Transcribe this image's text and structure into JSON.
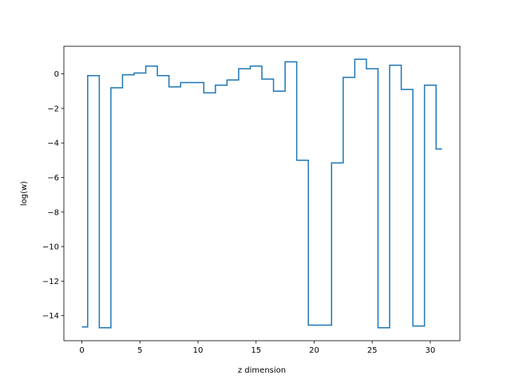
{
  "chart_data": {
    "type": "line",
    "drawstyle": "steps-mid",
    "title": "",
    "xlabel": "z dimension",
    "ylabel": "log(w)",
    "xlim": [
      -1.55,
      32.55
    ],
    "ylim": [
      -15.45,
      1.6
    ],
    "grid": false,
    "xticks": [
      0,
      5,
      10,
      15,
      20,
      25,
      30
    ],
    "xtick_labels": [
      "0",
      "5",
      "10",
      "15",
      "20",
      "25",
      "30"
    ],
    "yticks": [
      -14,
      -12,
      -10,
      -8,
      -6,
      -4,
      -2,
      0
    ],
    "ytick_labels": [
      "−14",
      "−12",
      "−10",
      "−8",
      "−6",
      "−4",
      "−2",
      "0"
    ],
    "series": [
      {
        "color": "#1f77b4",
        "x": [
          0,
          1,
          2,
          3,
          4,
          5,
          6,
          7,
          8,
          9,
          10,
          11,
          12,
          13,
          14,
          15,
          16,
          17,
          18,
          19,
          20,
          21,
          22,
          23,
          24,
          25,
          26,
          27,
          28,
          29,
          30,
          31
        ],
        "y": [
          -14.65,
          -0.1,
          -14.7,
          -0.8,
          -0.05,
          0.05,
          0.45,
          -0.1,
          -0.75,
          -0.5,
          -0.5,
          -1.1,
          -0.65,
          -0.35,
          0.3,
          0.45,
          -0.3,
          -1.0,
          0.7,
          -5.0,
          -14.55,
          -14.55,
          -5.15,
          -0.2,
          0.85,
          0.3,
          -14.7,
          0.5,
          -0.9,
          -14.6,
          -0.65,
          -4.35
        ]
      }
    ]
  }
}
